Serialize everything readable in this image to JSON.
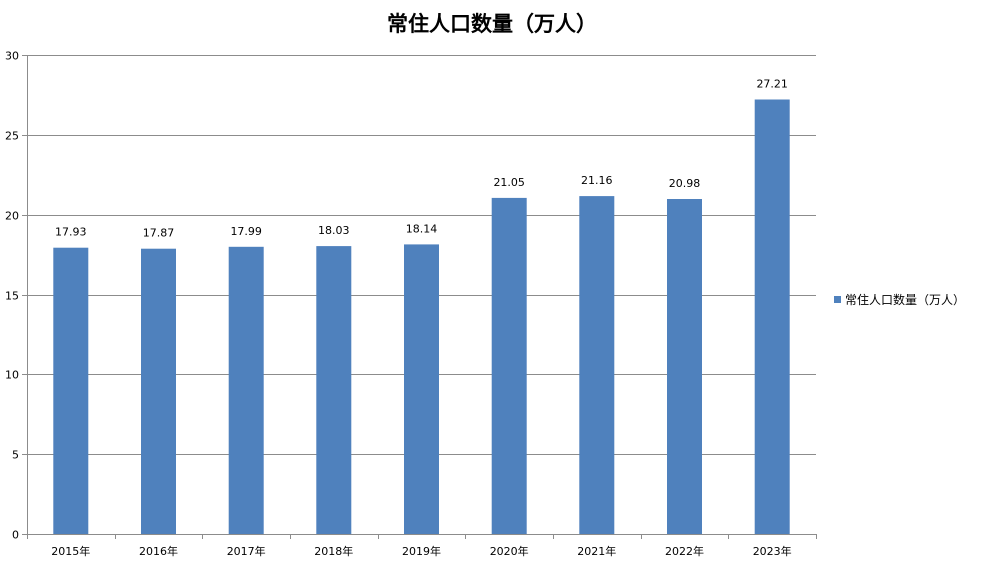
{
  "chart_data": {
    "type": "bar",
    "title": "常住人口数量（万人）",
    "xlabel": "",
    "ylabel": "",
    "categories": [
      "2015年",
      "2016年",
      "2017年",
      "2018年",
      "2019年",
      "2020年",
      "2021年",
      "2022年",
      "2023年"
    ],
    "series": [
      {
        "name": "常住人口数量（万人）",
        "values": [
          17.93,
          17.87,
          17.99,
          18.03,
          18.14,
          21.05,
          21.16,
          20.98,
          27.21
        ],
        "color": "#4f81bd"
      }
    ],
    "ylim": [
      0,
      30
    ],
    "yticks": [
      0,
      5,
      10,
      15,
      20,
      25,
      30
    ],
    "grid": true,
    "legend_position": "right",
    "data_labels": true
  }
}
